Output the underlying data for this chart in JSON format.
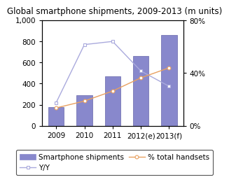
{
  "title": "Global smartphone shipments, 2009-2013 (m units)",
  "categories": [
    "2009",
    "2010",
    "2011",
    "2012(e)",
    "2013(f)"
  ],
  "bar_values": [
    180,
    290,
    470,
    660,
    860
  ],
  "bar_color": "#8888cc",
  "bar_edgecolor": "#6666aa",
  "yy_values": [
    220,
    770,
    800,
    520,
    375
  ],
  "yy_color": "#aaaadd",
  "yy_marker": "s",
  "pct_values": [
    170,
    235,
    330,
    455,
    550
  ],
  "pct_color": "#e8a060",
  "pct_marker": "o",
  "ylim": [
    0,
    1000
  ],
  "yticks_left": [
    0,
    200,
    400,
    600,
    800,
    1000
  ],
  "ytick_labels_left": [
    "0",
    "200",
    "400",
    "600",
    "800",
    "1,000"
  ],
  "yticks_right": [
    0,
    500,
    1000
  ],
  "ytick_labels_right": [
    "0%",
    "40%",
    "80%"
  ],
  "title_fontsize": 8.5,
  "tick_fontsize": 7.5,
  "legend_fontsize": 7.5,
  "background_color": "#ffffff"
}
